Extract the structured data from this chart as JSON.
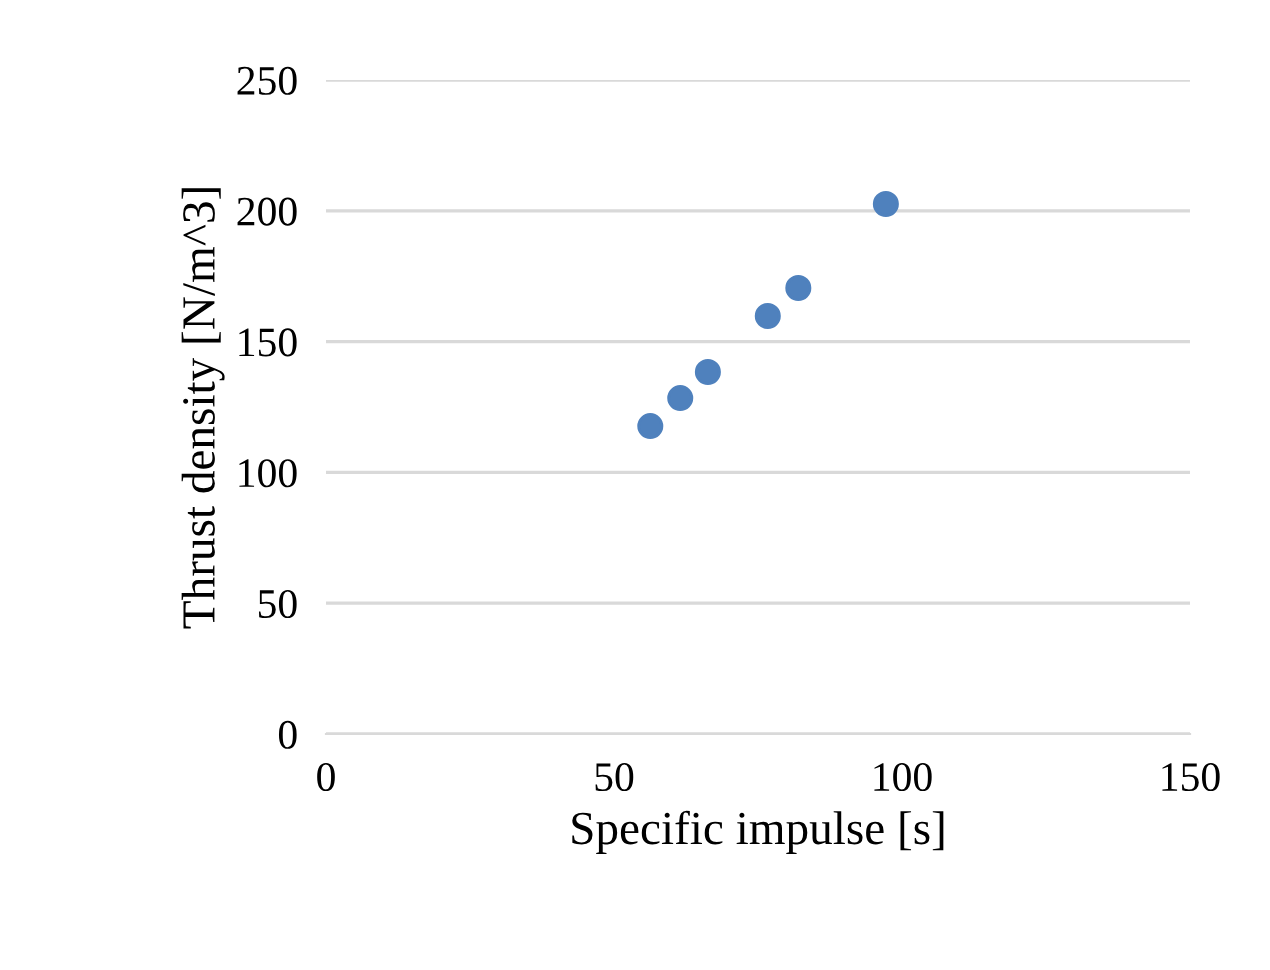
{
  "chart_data": {
    "type": "scatter",
    "xlabel": "Specific impulse [s]",
    "ylabel": "Thrust density [N/m^3]",
    "x": [
      56.3,
      61.5,
      66.3,
      76.7,
      82.0,
      97.2
    ],
    "series": [
      {
        "color": "#4f81bd",
        "values": [
          117.7,
          128.4,
          138.4,
          159.8,
          170.5,
          202.6
        ]
      }
    ],
    "xlim": [
      0,
      150
    ],
    "xticks": [
      0,
      50,
      100,
      150
    ],
    "ylim": [
      0,
      250
    ],
    "yticks": [
      0,
      50,
      100,
      150,
      200,
      250
    ],
    "grid": "y",
    "marker": "circle"
  }
}
